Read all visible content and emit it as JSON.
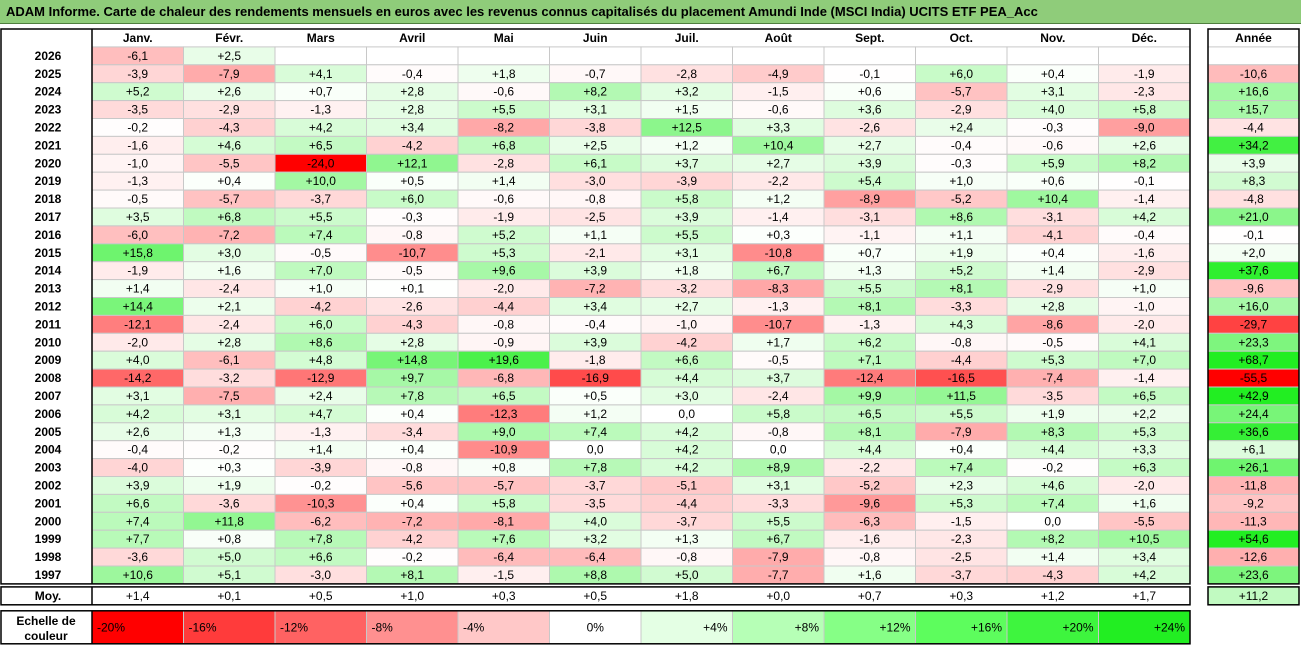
{
  "title": "ADAM Informe. Carte de chaleur des rendements mensuels en euros avec les revenus connus capitalisés du placement Amundi Inde (MSCI India) UCITS ETF PEA_Acc",
  "chart_data": {
    "type": "heatmap",
    "title": "ADAM Informe. Carte de chaleur des rendements mensuels en euros avec les revenus connus capitalisés du placement Amundi Inde (MSCI India) UCITS ETF PEA_Acc",
    "months": [
      "Janv.",
      "Févr.",
      "Mars",
      "Avril",
      "Mai",
      "Juin",
      "Juil.",
      "Août",
      "Sept.",
      "Oct.",
      "Nov.",
      "Déc."
    ],
    "annual_header": "Année",
    "rows": [
      {
        "year": "2026",
        "values": [
          "-6,1",
          "+2,5",
          "",
          "",
          "",
          "",
          "",
          "",
          "",
          "",
          "",
          ""
        ],
        "annual": ""
      },
      {
        "year": "2025",
        "values": [
          "-3,9",
          "-7,9",
          "+4,1",
          "-0,4",
          "+1,8",
          "-0,7",
          "-2,8",
          "-4,9",
          "-0,1",
          "+6,0",
          "+0,4",
          "-1,9"
        ],
        "annual": "-10,6"
      },
      {
        "year": "2024",
        "values": [
          "+5,2",
          "+2,6",
          "+0,7",
          "+2,8",
          "-0,6",
          "+8,2",
          "+3,2",
          "-1,5",
          "+0,6",
          "-5,7",
          "+3,1",
          "-2,3"
        ],
        "annual": "+16,6"
      },
      {
        "year": "2023",
        "values": [
          "-3,5",
          "-2,9",
          "-1,3",
          "+2,8",
          "+5,5",
          "+3,1",
          "+1,5",
          "-0,6",
          "+3,6",
          "-2,9",
          "+4,0",
          "+5,8"
        ],
        "annual": "+15,7"
      },
      {
        "year": "2022",
        "values": [
          "-0,2",
          "-4,3",
          "+4,2",
          "+3,4",
          "-8,2",
          "-3,8",
          "+12,5",
          "+3,3",
          "-2,6",
          "+2,4",
          "-0,3",
          "-9,0"
        ],
        "annual": "-4,4"
      },
      {
        "year": "2021",
        "values": [
          "-1,6",
          "+4,6",
          "+6,5",
          "-4,2",
          "+6,8",
          "+2,5",
          "+1,2",
          "+10,4",
          "+2,7",
          "-0,4",
          "-0,6",
          "+2,6"
        ],
        "annual": "+34,2"
      },
      {
        "year": "2020",
        "values": [
          "-1,0",
          "-5,5",
          "-24,0",
          "+12,1",
          "-2,8",
          "+6,1",
          "+3,7",
          "+2,7",
          "+3,9",
          "-0,3",
          "+5,9",
          "+8,2"
        ],
        "annual": "+3,9"
      },
      {
        "year": "2019",
        "values": [
          "-1,3",
          "+0,4",
          "+10,0",
          "+0,5",
          "+1,4",
          "-3,0",
          "-3,9",
          "-2,2",
          "+5,4",
          "+1,0",
          "+0,6",
          "-0,1"
        ],
        "annual": "+8,3"
      },
      {
        "year": "2018",
        "values": [
          "-0,5",
          "-5,7",
          "-3,7",
          "+6,0",
          "-0,6",
          "-0,8",
          "+5,8",
          "+1,2",
          "-8,9",
          "-5,2",
          "+10,4",
          "-1,4"
        ],
        "annual": "-4,8"
      },
      {
        "year": "2017",
        "values": [
          "+3,5",
          "+6,8",
          "+5,5",
          "-0,3",
          "-1,9",
          "-2,5",
          "+3,9",
          "-1,4",
          "-3,1",
          "+8,6",
          "-3,1",
          "+4,2"
        ],
        "annual": "+21,0"
      },
      {
        "year": "2016",
        "values": [
          "-6,0",
          "-7,2",
          "+7,4",
          "-0,8",
          "+5,2",
          "+1,1",
          "+5,5",
          "+0,3",
          "-1,1",
          "+1,1",
          "-4,1",
          "-0,4"
        ],
        "annual": "-0,1"
      },
      {
        "year": "2015",
        "values": [
          "+15,8",
          "+3,0",
          "-0,5",
          "-10,7",
          "+5,3",
          "-2,1",
          "+3,1",
          "-10,8",
          "+0,7",
          "+1,9",
          "+0,4",
          "-1,6"
        ],
        "annual": "+2,0"
      },
      {
        "year": "2014",
        "values": [
          "-1,9",
          "+1,6",
          "+7,0",
          "-0,5",
          "+9,6",
          "+3,9",
          "+1,8",
          "+6,7",
          "+1,3",
          "+5,2",
          "+1,4",
          "-2,9"
        ],
        "annual": "+37,6"
      },
      {
        "year": "2013",
        "values": [
          "+1,4",
          "-2,4",
          "+1,0",
          "+0,1",
          "-2,0",
          "-7,2",
          "-3,2",
          "-8,3",
          "+5,5",
          "+8,1",
          "-2,9",
          "+1,0"
        ],
        "annual": "-9,6"
      },
      {
        "year": "2012",
        "values": [
          "+14,4",
          "+2,1",
          "-4,2",
          "-2,6",
          "-4,4",
          "+3,4",
          "+2,7",
          "-1,3",
          "+8,1",
          "-3,3",
          "+2,8",
          "-1,0"
        ],
        "annual": "+16,0"
      },
      {
        "year": "2011",
        "values": [
          "-12,1",
          "-2,4",
          "+6,0",
          "-4,3",
          "-0,8",
          "-0,4",
          "-1,0",
          "-10,7",
          "-1,3",
          "+4,3",
          "-8,6",
          "-2,0"
        ],
        "annual": "-29,7"
      },
      {
        "year": "2010",
        "values": [
          "-2,0",
          "+2,8",
          "+8,6",
          "+2,8",
          "-0,9",
          "+3,9",
          "-4,2",
          "+1,7",
          "+6,2",
          "-0,8",
          "-0,5",
          "+4,1"
        ],
        "annual": "+23,3"
      },
      {
        "year": "2009",
        "values": [
          "+4,0",
          "-6,1",
          "+4,8",
          "+14,8",
          "+19,6",
          "-1,8",
          "+6,6",
          "-0,5",
          "+7,1",
          "-4,4",
          "+5,3",
          "+7,0"
        ],
        "annual": "+68,7"
      },
      {
        "year": "2008",
        "values": [
          "-14,2",
          "-3,2",
          "-12,9",
          "+9,7",
          "-6,8",
          "-16,9",
          "+4,4",
          "+3,7",
          "-12,4",
          "-16,5",
          "-7,4",
          "-1,4"
        ],
        "annual": "-55,5"
      },
      {
        "year": "2007",
        "values": [
          "+3,1",
          "-7,5",
          "+2,4",
          "+7,8",
          "+6,5",
          "+0,5",
          "+3,0",
          "-2,4",
          "+9,9",
          "+11,5",
          "-3,5",
          "+6,5"
        ],
        "annual": "+42,9"
      },
      {
        "year": "2006",
        "values": [
          "+4,2",
          "+3,1",
          "+4,7",
          "+0,4",
          "-12,3",
          "+1,2",
          "0,0",
          "+5,8",
          "+6,5",
          "+5,5",
          "+1,9",
          "+2,2"
        ],
        "annual": "+24,4"
      },
      {
        "year": "2005",
        "values": [
          "+2,6",
          "+1,3",
          "-1,3",
          "-3,4",
          "+9,0",
          "+7,4",
          "+4,2",
          "-0,8",
          "+8,1",
          "-7,9",
          "+8,3",
          "+5,3"
        ],
        "annual": "+36,6"
      },
      {
        "year": "2004",
        "values": [
          "-0,4",
          "-0,2",
          "+1,4",
          "+0,4",
          "-10,9",
          "0,0",
          "+4,2",
          "0,0",
          "+4,4",
          "+0,4",
          "+4,4",
          "+3,3"
        ],
        "annual": "+6,1"
      },
      {
        "year": "2003",
        "values": [
          "-4,0",
          "+0,3",
          "-3,9",
          "-0,8",
          "+0,8",
          "+7,8",
          "+4,2",
          "+8,9",
          "-2,2",
          "+7,4",
          "-0,2",
          "+6,3"
        ],
        "annual": "+26,1"
      },
      {
        "year": "2002",
        "values": [
          "+3,9",
          "+1,9",
          "-0,2",
          "-5,6",
          "-5,7",
          "-3,7",
          "-5,1",
          "+3,1",
          "-5,2",
          "+2,3",
          "+4,6",
          "-2,0"
        ],
        "annual": "-11,8"
      },
      {
        "year": "2001",
        "values": [
          "+6,6",
          "-3,6",
          "-10,3",
          "+0,4",
          "+5,8",
          "-3,5",
          "-4,4",
          "-3,3",
          "-9,6",
          "+5,3",
          "+7,4",
          "+1,6"
        ],
        "annual": "-9,2"
      },
      {
        "year": "2000",
        "values": [
          "+7,4",
          "+11,8",
          "-6,2",
          "-7,2",
          "-8,1",
          "+4,0",
          "-3,7",
          "+5,5",
          "-6,3",
          "-1,5",
          "0,0",
          "-5,5"
        ],
        "annual": "-11,3"
      },
      {
        "year": "1999",
        "values": [
          "+7,7",
          "+0,8",
          "+7,8",
          "-4,2",
          "+7,6",
          "+3,2",
          "+1,3",
          "+6,7",
          "-1,6",
          "-2,3",
          "+8,2",
          "+10,5"
        ],
        "annual": "+54,6"
      },
      {
        "year": "1998",
        "values": [
          "-3,6",
          "+5,0",
          "+6,6",
          "-0,2",
          "-6,4",
          "-6,4",
          "-0,8",
          "-7,9",
          "-0,8",
          "-2,5",
          "+1,4",
          "+3,4"
        ],
        "annual": "-12,6"
      },
      {
        "year": "1997",
        "values": [
          "+10,6",
          "+5,1",
          "-3,0",
          "+8,1",
          "-1,5",
          "+8,8",
          "+5,0",
          "-7,7",
          "+1,6",
          "-3,7",
          "-4,3",
          "+4,2"
        ],
        "annual": "+23,6"
      }
    ],
    "average": {
      "label": "Moy.",
      "values": [
        "+1,4",
        "+0,1",
        "+0,5",
        "+1,0",
        "+0,3",
        "+0,5",
        "+1,8",
        "+0,0",
        "+0,7",
        "+0,3",
        "+1,2",
        "+1,7"
      ],
      "annual": "+11,2"
    },
    "scale": {
      "label_line1": "Echelle de",
      "label_line2": "couleur",
      "entries": [
        {
          "label": "-20%",
          "color": "#ff0000"
        },
        {
          "label": "-16%",
          "color": "#ff3b3b"
        },
        {
          "label": "-12%",
          "color": "#ff6262"
        },
        {
          "label": "-8%",
          "color": "#ff9090"
        },
        {
          "label": "-4%",
          "color": "#ffc8c8"
        },
        {
          "label": "0%",
          "color": "#ffffff"
        },
        {
          "label": "+4%",
          "color": "#e4ffe4"
        },
        {
          "label": "+8%",
          "color": "#b6ffb6"
        },
        {
          "label": "+12%",
          "color": "#86ff86"
        },
        {
          "label": "+16%",
          "color": "#5dfd5d"
        },
        {
          "label": "+20%",
          "color": "#3ef53e"
        },
        {
          "label": "+24%",
          "color": "#22ee22"
        }
      ]
    },
    "colors": {
      "negative": "#ff0000",
      "neutral": "#ffffff",
      "positive": "#22ee22",
      "grid": "#c8c8c8",
      "border": "#000000"
    }
  }
}
